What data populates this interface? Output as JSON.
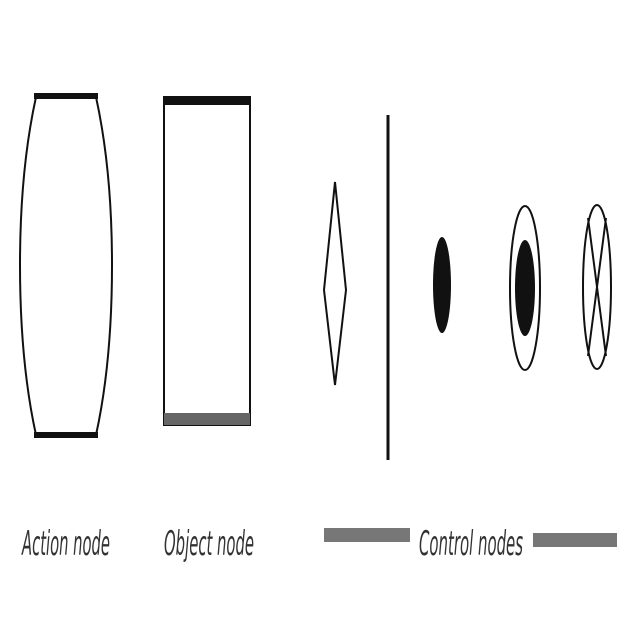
{
  "labels": {
    "action_node": "Action node",
    "object_node": "Object node",
    "control_nodes": "Control nodes"
  },
  "colors": {
    "stroke": "#111111",
    "label": "#333333",
    "object_bottom_bar": "#666666",
    "bracket_bar": "#777777"
  },
  "icons": {
    "action_node": "rounded-rectangle",
    "object_node": "rectangle",
    "decision_node": "diamond",
    "fork_join_bar": "vertical-bar",
    "initial_node": "filled-circle",
    "final_node": "bullseye",
    "flow_final_node": "circle-with-x"
  }
}
